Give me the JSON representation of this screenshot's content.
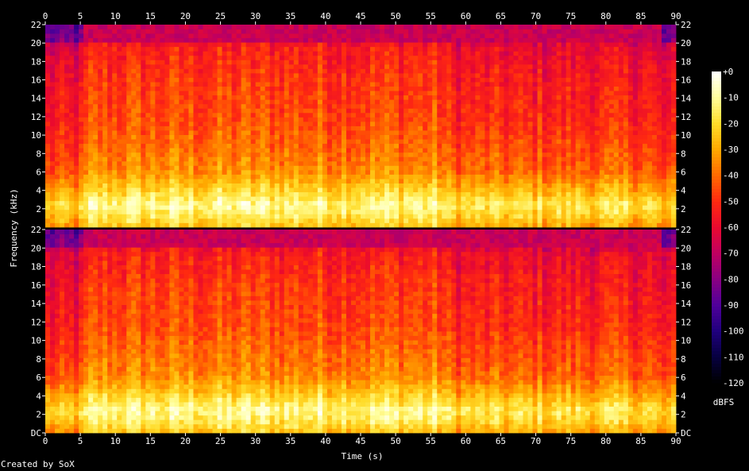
{
  "credit": "Created by SoX",
  "chart_data": {
    "type": "heatmap",
    "title": "",
    "xlabel": "Time (s)",
    "ylabel": "Frequency (kHz)",
    "xlim": [
      0,
      90
    ],
    "ylim": [
      0,
      22
    ],
    "x_ticks": [
      "0",
      "5",
      "10",
      "15",
      "20",
      "25",
      "30",
      "35",
      "40",
      "45",
      "50",
      "55",
      "60",
      "65",
      "70",
      "75",
      "80",
      "85",
      "90"
    ],
    "channels": [
      {
        "y_ticks": [
          "2",
          "4",
          "6",
          "8",
          "10",
          "12",
          "14",
          "16",
          "18",
          "20",
          "22"
        ]
      },
      {
        "y_ticks": [
          "DC",
          "2",
          "4",
          "6",
          "8",
          "10",
          "12",
          "14",
          "16",
          "18",
          "20",
          "22"
        ]
      }
    ],
    "colorbar": {
      "label": "dBFS",
      "range": [
        -120,
        0
      ],
      "ticks": [
        "+0",
        "-10",
        "-20",
        "-30",
        "-40",
        "-50",
        "-60",
        "-70",
        "-80",
        "-90",
        "-100",
        "-110",
        "-120"
      ],
      "colors": [
        "#ffffff",
        "#ffff9e",
        "#ffdc2a",
        "#ffaa00",
        "#ff6a00",
        "#ff2a10",
        "#ea0a2e",
        "#c00060",
        "#8a0082",
        "#50009a",
        "#20007e",
        "#060040",
        "#000000"
      ]
    },
    "spectrum_profile": [
      {
        "khz": 0,
        "db": -25
      },
      {
        "khz": 1.5,
        "db": -14
      },
      {
        "khz": 2.5,
        "db": -10
      },
      {
        "khz": 3.5,
        "db": -18
      },
      {
        "khz": 4.5,
        "db": -24
      },
      {
        "khz": 6,
        "db": -34
      },
      {
        "khz": 9,
        "db": -40
      },
      {
        "khz": 12,
        "db": -45
      },
      {
        "khz": 16,
        "db": -48
      },
      {
        "khz": 19.8,
        "db": -54
      },
      {
        "khz": 20.2,
        "db": -72
      },
      {
        "khz": 22,
        "db": -76
      }
    ],
    "loudness_over_time": [
      {
        "t": 0,
        "db": -12
      },
      {
        "t": 5.5,
        "db": -12
      },
      {
        "t": 6,
        "db": 0
      },
      {
        "t": 56,
        "db": 0
      },
      {
        "t": 58,
        "db": -7
      },
      {
        "t": 86,
        "db": -7
      },
      {
        "t": 88,
        "db": -14
      },
      {
        "t": 90,
        "db": -12
      }
    ]
  }
}
